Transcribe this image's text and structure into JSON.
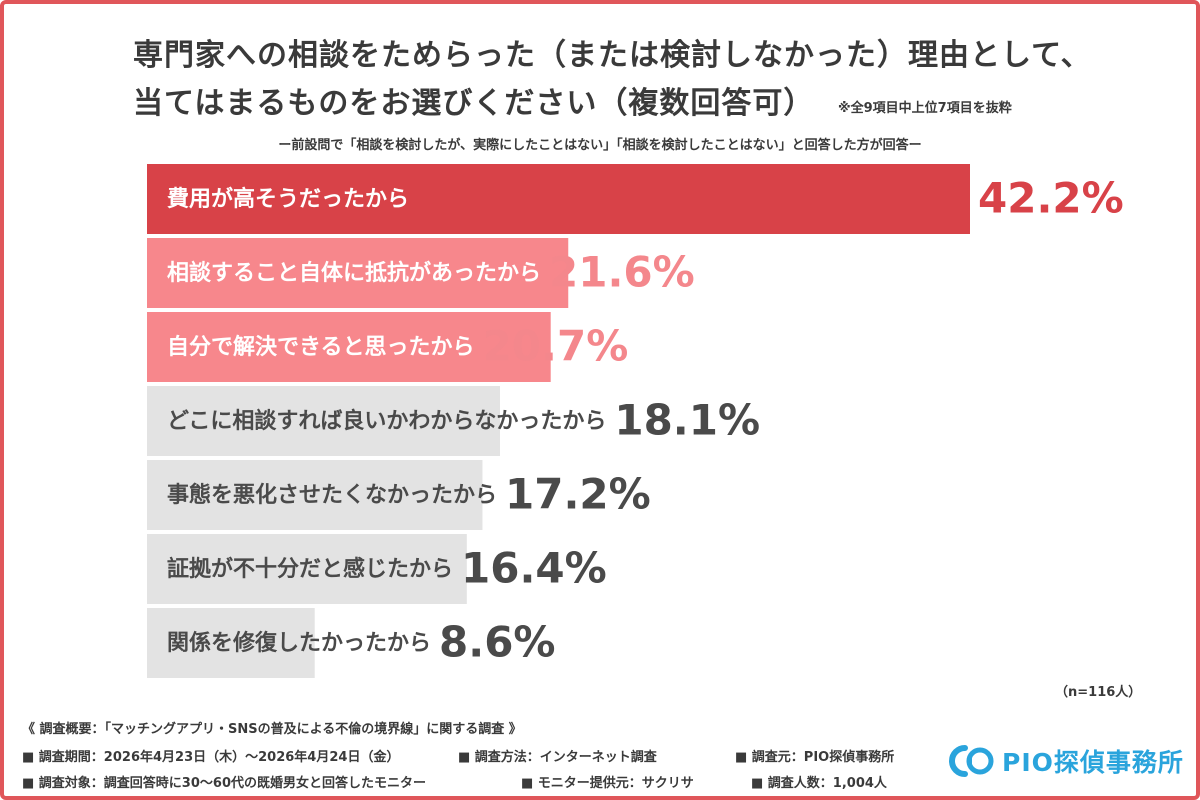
{
  "title_line1": "専門家への相談をためらった（または検討しなかった）理由として、",
  "title_line2": "当てはまるものをお選びください（複数回答可）",
  "note": "※全9項目中上位7項目を抜粋",
  "subtitle": "ー前設問で「相談を検討したが、実際にしたことはない」「相談を検討したことはない」と回答した方が回答ー",
  "chart_data": {
    "type": "bar",
    "orientation": "horizontal",
    "categories": [
      "費用が高そうだったから",
      "相談すること自体に抵抗があったから",
      "自分で解決できると思ったから",
      "どこに相談すれば良いかわからなかったから",
      "事態を悪化させたくなかったから",
      "証拠が不十分だと感じたから",
      "関係を修復したかったから"
    ],
    "values": [
      42.2,
      21.6,
      20.7,
      18.1,
      17.2,
      16.4,
      8.6
    ],
    "value_labels": [
      "42.2%",
      "21.6%",
      "20.7%",
      "18.1%",
      "17.2%",
      "16.4%",
      "8.6%"
    ],
    "xlim": [
      0,
      42.2
    ],
    "grid": false,
    "colors": {
      "top1_bar": "#d84248",
      "top1_text": "#ffffff",
      "top1_value": "#d84248",
      "top23_bar": "#f7878c",
      "top23_text": "#ffffff",
      "top23_value": "#f4878c",
      "other_bar": "#e3e3e3",
      "other_text": "#4a4a4a",
      "other_value": "#4a4a4a"
    }
  },
  "n_label": "（n=116人）",
  "footer": {
    "overview": "《 調査概要：「マッチングアプリ・SNSの普及による不倫の境界線」に関する調査 》",
    "period": "■ 調査期間：2026年4月23日（木）〜2026年4月24日（金）",
    "method": "■ 調査方法：インターネット調査",
    "source": "■ 調査元：PIO探偵事務所",
    "target": "■ 調査対象：調査回答時に30〜60代の既婚男女と回答したモニター",
    "provider": "■ モニター提供元：サクリサ",
    "count": "■ 調査人数：1,004人"
  },
  "logo": {
    "text": "PIO探偵事務所",
    "color": "#2aa4dc"
  }
}
